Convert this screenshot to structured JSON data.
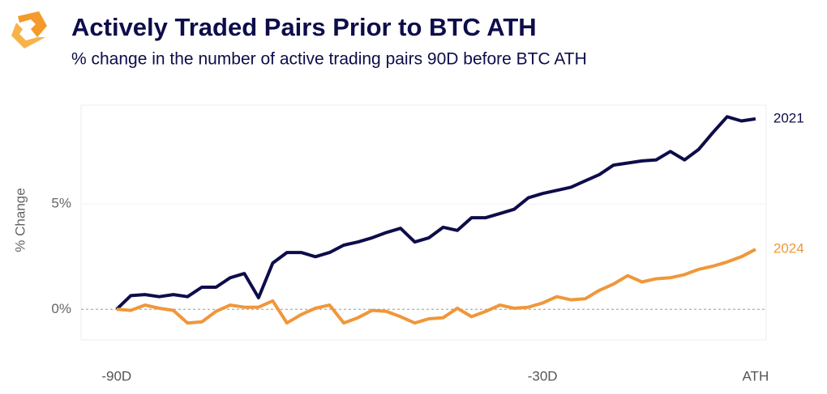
{
  "chart_data": {
    "type": "line",
    "title": "Actively Traded Pairs Prior to BTC ATH",
    "subtitle": "% change in the number of active trading pairs 90D before BTC ATH",
    "y_label": "% Change",
    "x": [
      -90,
      -88,
      -86,
      -84,
      -82,
      -80,
      -78,
      -76,
      -74,
      -72,
      -70,
      -68,
      -66,
      -64,
      -62,
      -60,
      -58,
      -56,
      -54,
      -52,
      -50,
      -48,
      -46,
      -44,
      -42,
      -40,
      -38,
      -36,
      -34,
      -32,
      -30,
      -28,
      -26,
      -24,
      -22,
      -20,
      -18,
      -16,
      -14,
      -12,
      -10,
      -8,
      -6,
      -4,
      -2,
      0
    ],
    "series": [
      {
        "name": "2021",
        "color": "#0d0d4a",
        "values": [
          0,
          0.65,
          0.7,
          0.6,
          0.7,
          0.6,
          1.05,
          1.05,
          1.5,
          1.7,
          0.55,
          2.2,
          2.7,
          2.7,
          2.5,
          2.7,
          3.05,
          3.2,
          3.4,
          3.65,
          3.85,
          3.2,
          3.4,
          3.9,
          3.75,
          4.35,
          4.35,
          4.55,
          4.75,
          5.3,
          5.5,
          5.65,
          5.8,
          6.1,
          6.4,
          6.85,
          6.95,
          7.05,
          7.1,
          7.5,
          7.1,
          7.6,
          8.4,
          9.15,
          8.95,
          9.05
        ]
      },
      {
        "name": "2024",
        "color": "#f0973a",
        "values": [
          0,
          -0.05,
          0.2,
          0.05,
          -0.05,
          -0.65,
          -0.6,
          -0.1,
          0.2,
          0.1,
          0.1,
          0.4,
          -0.65,
          -0.25,
          0.05,
          0.2,
          -0.65,
          -0.4,
          -0.05,
          -0.1,
          -0.35,
          -0.65,
          -0.45,
          -0.4,
          0.05,
          -0.35,
          -0.1,
          0.2,
          0.05,
          0.1,
          0.3,
          0.6,
          0.45,
          0.5,
          0.9,
          1.2,
          1.6,
          1.3,
          1.45,
          1.5,
          1.65,
          1.9,
          2.05,
          2.25,
          2.5,
          2.85
        ]
      }
    ],
    "xlim": [
      -95,
      1.5
    ],
    "ylim": [
      -1.45,
      9.7
    ],
    "xticks": [
      {
        "value": -90,
        "label": "-90D"
      },
      {
        "value": -30,
        "label": "-30D"
      },
      {
        "value": 0,
        "label": "ATH"
      }
    ],
    "yticks": [
      {
        "value": 0,
        "label": "0%"
      },
      {
        "value": 5,
        "label": "5%"
      }
    ]
  }
}
